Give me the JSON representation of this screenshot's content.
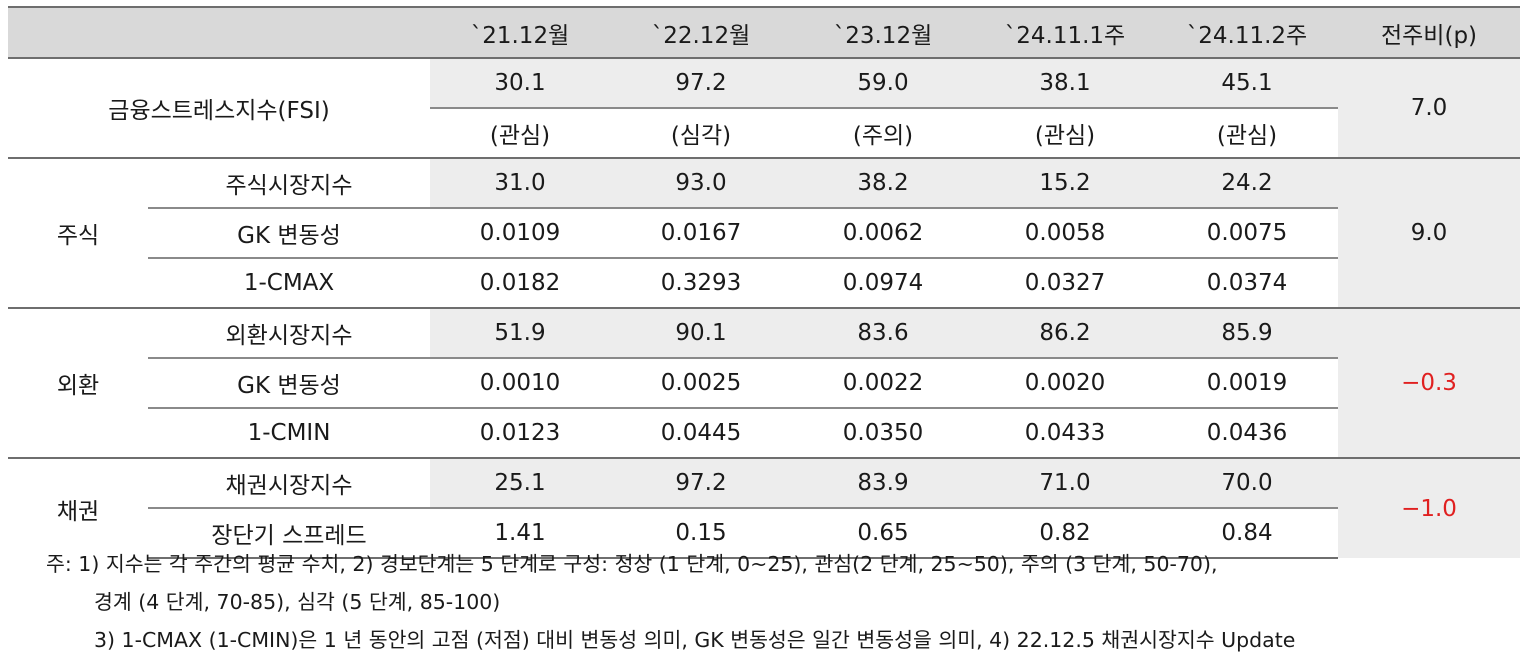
{
  "header": {
    "columns": [
      "`21.12월",
      "`22.12월",
      "`23.12월",
      "`24.11.1주",
      "`24.11.2주",
      "전주비(p)"
    ]
  },
  "fsi": {
    "label": "금융스트레스지수(FSI)",
    "values": [
      "30.1",
      "97.2",
      "59.0",
      "38.1",
      "45.1"
    ],
    "stages": [
      "(관심)",
      "(심각)",
      "(주의)",
      "(관심)",
      "(관심)"
    ],
    "change": "7.0"
  },
  "groups": [
    {
      "name": "주식",
      "change": "9.0",
      "rows": [
        {
          "label": "주식시장지수",
          "values": [
            "31.0",
            "93.0",
            "38.2",
            "15.2",
            "24.2"
          ]
        },
        {
          "label": "GK 변동성",
          "values": [
            "0.0109",
            "0.0167",
            "0.0062",
            "0.0058",
            "0.0075"
          ]
        },
        {
          "label": "1-CMAX",
          "values": [
            "0.0182",
            "0.3293",
            "0.0974",
            "0.0327",
            "0.0374"
          ]
        }
      ]
    },
    {
      "name": "외환",
      "change": "−0.3",
      "rows": [
        {
          "label": "외환시장지수",
          "values": [
            "51.9",
            "90.1",
            "83.6",
            "86.2",
            "85.9"
          ]
        },
        {
          "label": "GK 변동성",
          "values": [
            "0.0010",
            "0.0025",
            "0.0022",
            "0.0020",
            "0.0019"
          ]
        },
        {
          "label": "1-CMIN",
          "values": [
            "0.0123",
            "0.0445",
            "0.0350",
            "0.0433",
            "0.0436"
          ]
        }
      ]
    },
    {
      "name": "채권",
      "change": "−1.0",
      "rows": [
        {
          "label": "채권시장지수",
          "values": [
            "25.1",
            "97.2",
            "83.9",
            "71.0",
            "70.0"
          ]
        },
        {
          "label": "장단기 스프레드",
          "values": [
            "1.41",
            "0.15",
            "0.65",
            "0.82",
            "0.84"
          ]
        }
      ]
    }
  ],
  "colors": {
    "negative": "#e02020",
    "header_bg": "#d9d9d9",
    "shade_bg": "#ededed"
  },
  "notes": {
    "line1": "주: 1) 지수는 각 주간의 평균 수치, 2) 경보단계는 5 단계로 구성: 정상 (1 단계, 0~25), 관심(2 단계, 25~50), 주의 (3 단계, 50-70),",
    "line2": "경계 (4 단계, 70-85), 심각 (5 단계, 85-100)",
    "line3": "3) 1-CMAX (1-CMIN)은 1 년 동안의 고점 (저점) 대비 변동성 의미, GK 변동성은 일간 변동성을 의미, 4) 22.12.5 채권시장지수 Update"
  }
}
